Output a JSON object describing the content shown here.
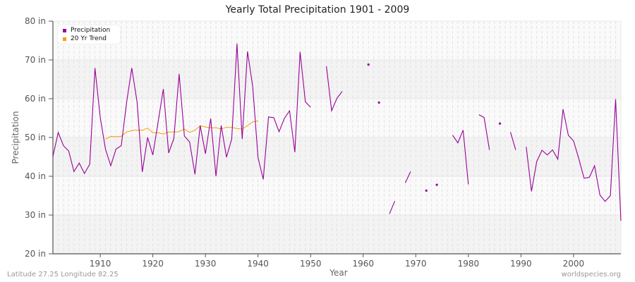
{
  "header": {
    "title": "Yearly Total Precipitation 1901 - 2009"
  },
  "footer": {
    "left": "Latitude 27.25 Longitude 82.25",
    "right": "worldspecies.org"
  },
  "legend": {
    "items": [
      {
        "label": "Precipitation",
        "color": "#990099"
      },
      {
        "label": "20 Yr Trend",
        "color": "#ff9900"
      }
    ]
  },
  "axes": {
    "xlabel": "Year",
    "ylabel": "Precipitation",
    "yticks": [
      "20 in",
      "30 in",
      "40 in",
      "50 in",
      "60 in",
      "70 in",
      "80 in"
    ],
    "xticks": [
      "1910",
      "1920",
      "1930",
      "1940",
      "1950",
      "1960",
      "1970",
      "1980",
      "1990",
      "2000"
    ]
  },
  "colors": {
    "precipitation": "#990099",
    "trend": "#ff9900",
    "band_light": "#fafafa",
    "band_dark": "#f3f3f3",
    "grid": "#e2e2e2",
    "axis": "#555555"
  },
  "chart_data": {
    "type": "line",
    "title": "Yearly Total Precipitation 1901 - 2009",
    "xlabel": "Year",
    "ylabel": "Precipitation",
    "xlim": [
      1901,
      2009
    ],
    "ylim": [
      20,
      80
    ],
    "y_unit": "in",
    "grid": true,
    "legend_position": "top-left",
    "yticks": [
      20,
      30,
      40,
      50,
      60,
      70,
      80
    ],
    "xticks": [
      1910,
      1920,
      1930,
      1940,
      1950,
      1960,
      1970,
      1980,
      1990,
      2000
    ],
    "series": [
      {
        "name": "Precipitation",
        "color": "#990099",
        "points": [
          [
            1901,
            45.1
          ],
          [
            1902,
            51.3
          ],
          [
            1903,
            47.9
          ],
          [
            1904,
            46.5
          ],
          [
            1905,
            41.2
          ],
          [
            1906,
            43.4
          ],
          [
            1907,
            40.7
          ],
          [
            1908,
            43.1
          ],
          [
            1909,
            67.9
          ],
          [
            1910,
            55.1
          ],
          [
            1911,
            47.0
          ],
          [
            1912,
            42.7
          ],
          [
            1913,
            47.0
          ],
          [
            1914,
            47.9
          ],
          [
            1915,
            59.0
          ],
          [
            1916,
            67.9
          ],
          [
            1917,
            59.1
          ],
          [
            1918,
            41.1
          ],
          [
            1919,
            50.0
          ],
          [
            1920,
            45.5
          ],
          [
            1921,
            54.0
          ],
          [
            1922,
            62.5
          ],
          [
            1923,
            46.0
          ],
          [
            1924,
            49.7
          ],
          [
            1925,
            66.4
          ],
          [
            1926,
            50.4
          ],
          [
            1927,
            48.8
          ],
          [
            1928,
            40.5
          ],
          [
            1929,
            53.1
          ],
          [
            1930,
            45.8
          ],
          [
            1931,
            54.9
          ],
          [
            1932,
            40.0
          ],
          [
            1933,
            53.1
          ],
          [
            1934,
            44.9
          ],
          [
            1935,
            49.6
          ],
          [
            1936,
            74.2
          ],
          [
            1937,
            49.6
          ],
          [
            1938,
            72.2
          ],
          [
            1939,
            63.1
          ],
          [
            1940,
            44.8
          ],
          [
            1941,
            39.2
          ],
          [
            1942,
            55.3
          ],
          [
            1943,
            55.1
          ],
          [
            1944,
            51.5
          ],
          [
            1945,
            54.9
          ],
          [
            1946,
            56.9
          ],
          [
            1947,
            46.2
          ],
          [
            1948,
            72.1
          ],
          [
            1949,
            59.2
          ],
          [
            1950,
            57.8
          ],
          [
            1951,
            null
          ],
          [
            1952,
            null
          ],
          [
            1953,
            68.4
          ],
          [
            1954,
            56.9
          ],
          [
            1955,
            60.1
          ],
          [
            1956,
            61.9
          ],
          [
            1957,
            null
          ],
          [
            1958,
            null
          ],
          [
            1959,
            null
          ],
          [
            1960,
            null
          ],
          [
            1961,
            68.8
          ],
          [
            1962,
            null
          ],
          [
            1963,
            59.0
          ],
          [
            1964,
            null
          ],
          [
            1965,
            30.3
          ],
          [
            1966,
            33.6
          ],
          [
            1967,
            null
          ],
          [
            1968,
            38.3
          ],
          [
            1969,
            41.2
          ],
          [
            1970,
            null
          ],
          [
            1971,
            null
          ],
          [
            1972,
            36.3
          ],
          [
            1973,
            null
          ],
          [
            1974,
            37.8
          ],
          [
            1975,
            null
          ],
          [
            1976,
            null
          ],
          [
            1977,
            50.6
          ],
          [
            1978,
            48.6
          ],
          [
            1979,
            51.9
          ],
          [
            1980,
            37.9
          ],
          [
            1981,
            null
          ],
          [
            1982,
            55.9
          ],
          [
            1983,
            55.1
          ],
          [
            1984,
            46.8
          ],
          [
            1985,
            null
          ],
          [
            1986,
            53.6
          ],
          [
            1987,
            null
          ],
          [
            1988,
            51.4
          ],
          [
            1989,
            46.8
          ],
          [
            1990,
            null
          ],
          [
            1991,
            47.6
          ],
          [
            1992,
            36.1
          ],
          [
            1993,
            43.8
          ],
          [
            1994,
            46.7
          ],
          [
            1995,
            45.5
          ],
          [
            1996,
            46.8
          ],
          [
            1997,
            44.4
          ],
          [
            1998,
            57.3
          ],
          [
            1999,
            50.6
          ],
          [
            2000,
            49.1
          ],
          [
            2001,
            44.5
          ],
          [
            2002,
            39.5
          ],
          [
            2003,
            39.7
          ],
          [
            2004,
            42.7
          ],
          [
            2005,
            35.2
          ],
          [
            2006,
            33.5
          ],
          [
            2007,
            35.0
          ],
          [
            2008,
            59.9
          ],
          [
            2009,
            28.5
          ]
        ]
      },
      {
        "name": "20 Yr Trend",
        "color": "#ff9900",
        "points": [
          [
            1911,
            49.6
          ],
          [
            1912,
            50.3
          ],
          [
            1913,
            50.2
          ],
          [
            1914,
            50.3
          ],
          [
            1915,
            51.4
          ],
          [
            1916,
            51.8
          ],
          [
            1917,
            51.9
          ],
          [
            1918,
            51.9
          ],
          [
            1919,
            52.4
          ],
          [
            1920,
            51.2
          ],
          [
            1921,
            51.2
          ],
          [
            1922,
            50.9
          ],
          [
            1923,
            51.4
          ],
          [
            1924,
            51.4
          ],
          [
            1925,
            51.5
          ],
          [
            1926,
            52.2
          ],
          [
            1927,
            51.3
          ],
          [
            1928,
            51.9
          ],
          [
            1929,
            53.0
          ],
          [
            1930,
            52.7
          ],
          [
            1931,
            52.5
          ],
          [
            1932,
            52.5
          ],
          [
            1933,
            52.2
          ],
          [
            1934,
            52.6
          ],
          [
            1935,
            52.6
          ],
          [
            1936,
            52.3
          ],
          [
            1937,
            52.1
          ],
          [
            1938,
            53.1
          ],
          [
            1939,
            54.0
          ],
          [
            1940,
            54.3
          ]
        ]
      }
    ]
  }
}
